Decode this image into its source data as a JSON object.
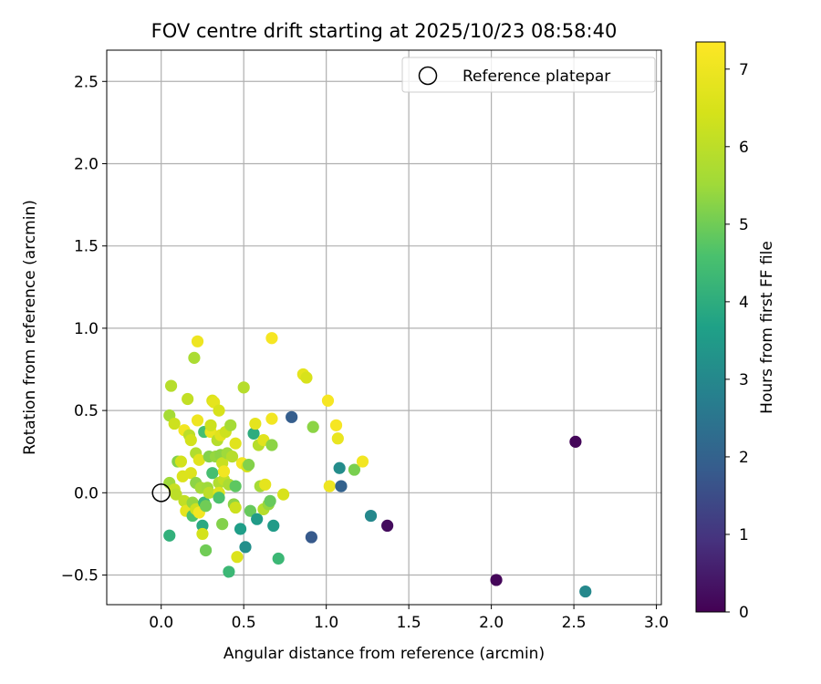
{
  "chart_data": {
    "type": "scatter",
    "title": "FOV centre drift starting at 2025/10/23 08:58:40",
    "xlabel": "Angular distance from reference (arcmin)",
    "ylabel": "Rotation from reference (arcmin)",
    "xlim": [
      -0.33,
      3.03
    ],
    "ylim": [
      -0.68,
      2.69
    ],
    "xticks": [
      0.0,
      0.5,
      1.0,
      1.5,
      2.0,
      2.5,
      3.0
    ],
    "xtick_labels": [
      "0.0",
      "0.5",
      "1.0",
      "1.5",
      "2.0",
      "2.5",
      "3.0"
    ],
    "yticks": [
      -0.5,
      0.0,
      0.5,
      1.0,
      1.5,
      2.0,
      2.5
    ],
    "ytick_labels": [
      "−0.5",
      "0.0",
      "0.5",
      "1.0",
      "1.5",
      "2.0",
      "2.5"
    ],
    "grid": true,
    "colormap": "viridis",
    "colorbar": {
      "label": "Hours from first FF file",
      "min": 0,
      "max": 7.35,
      "ticks": [
        0,
        1,
        2,
        3,
        4,
        5,
        6,
        7
      ],
      "tick_labels": [
        "0",
        "1",
        "2",
        "3",
        "4",
        "5",
        "6",
        "7"
      ]
    },
    "legend": {
      "position": "top-right",
      "label": "Reference platepar"
    },
    "reference_point": {
      "x": 0.0,
      "y": 0.0
    },
    "points": [
      {
        "x": 0.06,
        "y": 0.65,
        "h": 5.9
      },
      {
        "x": 0.05,
        "y": 0.47,
        "h": 5.6
      },
      {
        "x": 0.08,
        "y": 0.42,
        "h": 6.3
      },
      {
        "x": 0.05,
        "y": 0.06,
        "h": 5.5
      },
      {
        "x": 0.08,
        "y": 0.02,
        "h": 6.2
      },
      {
        "x": 0.09,
        "y": -0.01,
        "h": 6.0
      },
      {
        "x": 0.05,
        "y": -0.26,
        "h": 4.1
      },
      {
        "x": 0.1,
        "y": 0.19,
        "h": 5.2
      },
      {
        "x": 0.12,
        "y": 0.19,
        "h": 6.4
      },
      {
        "x": 0.13,
        "y": 0.1,
        "h": 6.6
      },
      {
        "x": 0.14,
        "y": -0.05,
        "h": 6.1
      },
      {
        "x": 0.14,
        "y": 0.38,
        "h": 7.1
      },
      {
        "x": 0.15,
        "y": -0.11,
        "h": 6.8
      },
      {
        "x": 0.16,
        "y": 0.57,
        "h": 6.1
      },
      {
        "x": 0.17,
        "y": 0.35,
        "h": 6.0
      },
      {
        "x": 0.18,
        "y": 0.32,
        "h": 6.4
      },
      {
        "x": 0.18,
        "y": 0.12,
        "h": 6.6
      },
      {
        "x": 0.19,
        "y": -0.06,
        "h": 5.4
      },
      {
        "x": 0.19,
        "y": -0.14,
        "h": 4.6
      },
      {
        "x": 0.2,
        "y": 0.82,
        "h": 5.7
      },
      {
        "x": 0.21,
        "y": 0.24,
        "h": 5.8
      },
      {
        "x": 0.21,
        "y": 0.06,
        "h": 5.3
      },
      {
        "x": 0.21,
        "y": -0.1,
        "h": 6.3
      },
      {
        "x": 0.22,
        "y": 0.92,
        "h": 7.0
      },
      {
        "x": 0.22,
        "y": 0.44,
        "h": 7.0
      },
      {
        "x": 0.23,
        "y": 0.2,
        "h": 6.7
      },
      {
        "x": 0.23,
        "y": -0.12,
        "h": 7.1
      },
      {
        "x": 0.24,
        "y": 0.03,
        "h": 5.6
      },
      {
        "x": 0.25,
        "y": -0.2,
        "h": 3.9
      },
      {
        "x": 0.25,
        "y": -0.25,
        "h": 6.4
      },
      {
        "x": 0.26,
        "y": 0.37,
        "h": 4.5
      },
      {
        "x": 0.26,
        "y": -0.06,
        "h": 4.3
      },
      {
        "x": 0.27,
        "y": -0.35,
        "h": 5.0
      },
      {
        "x": 0.27,
        "y": -0.08,
        "h": 5.0
      },
      {
        "x": 0.28,
        "y": 0.03,
        "h": 5.5
      },
      {
        "x": 0.29,
        "y": 0.0,
        "h": 6.0
      },
      {
        "x": 0.29,
        "y": 0.22,
        "h": 5.2
      },
      {
        "x": 0.3,
        "y": 0.37,
        "h": 6.9
      },
      {
        "x": 0.3,
        "y": 0.41,
        "h": 6.3
      },
      {
        "x": 0.31,
        "y": 0.12,
        "h": 4.5
      },
      {
        "x": 0.31,
        "y": 0.56,
        "h": 6.6
      },
      {
        "x": 0.32,
        "y": 0.55,
        "h": 6.8
      },
      {
        "x": 0.33,
        "y": 0.22,
        "h": 5.4
      },
      {
        "x": 0.34,
        "y": 0.32,
        "h": 5.9
      },
      {
        "x": 0.35,
        "y": 0.5,
        "h": 6.5
      },
      {
        "x": 0.35,
        "y": 0.06,
        "h": 5.8
      },
      {
        "x": 0.35,
        "y": 0.0,
        "h": 6.6
      },
      {
        "x": 0.35,
        "y": -0.03,
        "h": 4.6
      },
      {
        "x": 0.36,
        "y": 0.35,
        "h": 6.7
      },
      {
        "x": 0.36,
        "y": 0.23,
        "h": 5.3
      },
      {
        "x": 0.37,
        "y": 0.18,
        "h": 6.2
      },
      {
        "x": 0.37,
        "y": -0.19,
        "h": 5.2
      },
      {
        "x": 0.38,
        "y": 0.08,
        "h": 6.1
      },
      {
        "x": 0.38,
        "y": 0.13,
        "h": 7.1
      },
      {
        "x": 0.39,
        "y": 0.37,
        "h": 6.3
      },
      {
        "x": 0.4,
        "y": 0.24,
        "h": 5.5
      },
      {
        "x": 0.41,
        "y": 0.05,
        "h": 5.7
      },
      {
        "x": 0.41,
        "y": -0.48,
        "h": 4.3
      },
      {
        "x": 0.42,
        "y": 0.41,
        "h": 5.6
      },
      {
        "x": 0.43,
        "y": 0.22,
        "h": 5.9
      },
      {
        "x": 0.44,
        "y": -0.07,
        "h": 5.3
      },
      {
        "x": 0.45,
        "y": -0.09,
        "h": 6.3
      },
      {
        "x": 0.45,
        "y": 0.3,
        "h": 6.7
      },
      {
        "x": 0.45,
        "y": 0.04,
        "h": 4.8
      },
      {
        "x": 0.46,
        "y": -0.39,
        "h": 6.6
      },
      {
        "x": 0.48,
        "y": -0.22,
        "h": 3.6
      },
      {
        "x": 0.49,
        "y": 0.18,
        "h": 7.1
      },
      {
        "x": 0.5,
        "y": 0.64,
        "h": 5.9
      },
      {
        "x": 0.51,
        "y": -0.33,
        "h": 3.2
      },
      {
        "x": 0.52,
        "y": 0.16,
        "h": 6.5
      },
      {
        "x": 0.53,
        "y": 0.17,
        "h": 5.2
      },
      {
        "x": 0.54,
        "y": -0.11,
        "h": 4.9
      },
      {
        "x": 0.56,
        "y": 0.36,
        "h": 4.0
      },
      {
        "x": 0.57,
        "y": 0.42,
        "h": 6.8
      },
      {
        "x": 0.58,
        "y": -0.16,
        "h": 3.5
      },
      {
        "x": 0.59,
        "y": 0.29,
        "h": 5.9
      },
      {
        "x": 0.6,
        "y": 0.04,
        "h": 5.6
      },
      {
        "x": 0.62,
        "y": 0.32,
        "h": 6.7
      },
      {
        "x": 0.62,
        "y": -0.1,
        "h": 5.9
      },
      {
        "x": 0.63,
        "y": 0.05,
        "h": 6.8
      },
      {
        "x": 0.65,
        "y": -0.07,
        "h": 5.4
      },
      {
        "x": 0.66,
        "y": -0.05,
        "h": 4.9
      },
      {
        "x": 0.67,
        "y": 0.45,
        "h": 7.1
      },
      {
        "x": 0.67,
        "y": 0.94,
        "h": 7.2
      },
      {
        "x": 0.67,
        "y": 0.29,
        "h": 5.3
      },
      {
        "x": 0.68,
        "y": -0.2,
        "h": 3.5
      },
      {
        "x": 0.71,
        "y": -0.4,
        "h": 4.3
      },
      {
        "x": 0.74,
        "y": -0.01,
        "h": 6.5
      },
      {
        "x": 0.79,
        "y": 0.46,
        "h": 1.9
      },
      {
        "x": 0.86,
        "y": 0.72,
        "h": 6.8
      },
      {
        "x": 0.88,
        "y": 0.7,
        "h": 6.5
      },
      {
        "x": 0.91,
        "y": -0.27,
        "h": 1.8
      },
      {
        "x": 0.92,
        "y": 0.4,
        "h": 5.3
      },
      {
        "x": 1.01,
        "y": 0.56,
        "h": 7.2
      },
      {
        "x": 1.02,
        "y": 0.04,
        "h": 7.0
      },
      {
        "x": 1.06,
        "y": 0.41,
        "h": 7.2
      },
      {
        "x": 1.07,
        "y": 0.33,
        "h": 6.9
      },
      {
        "x": 1.08,
        "y": 0.15,
        "h": 3.1
      },
      {
        "x": 1.09,
        "y": 0.04,
        "h": 2.0
      },
      {
        "x": 1.17,
        "y": 0.14,
        "h": 5.1
      },
      {
        "x": 1.22,
        "y": 0.19,
        "h": 7.1
      },
      {
        "x": 1.27,
        "y": -0.14,
        "h": 3.0
      },
      {
        "x": 1.37,
        "y": -0.2,
        "h": 0.2
      },
      {
        "x": 2.03,
        "y": -0.53,
        "h": 0.1
      },
      {
        "x": 2.51,
        "y": 0.31,
        "h": 0.1
      },
      {
        "x": 2.57,
        "y": -0.6,
        "h": 3.0
      }
    ]
  }
}
